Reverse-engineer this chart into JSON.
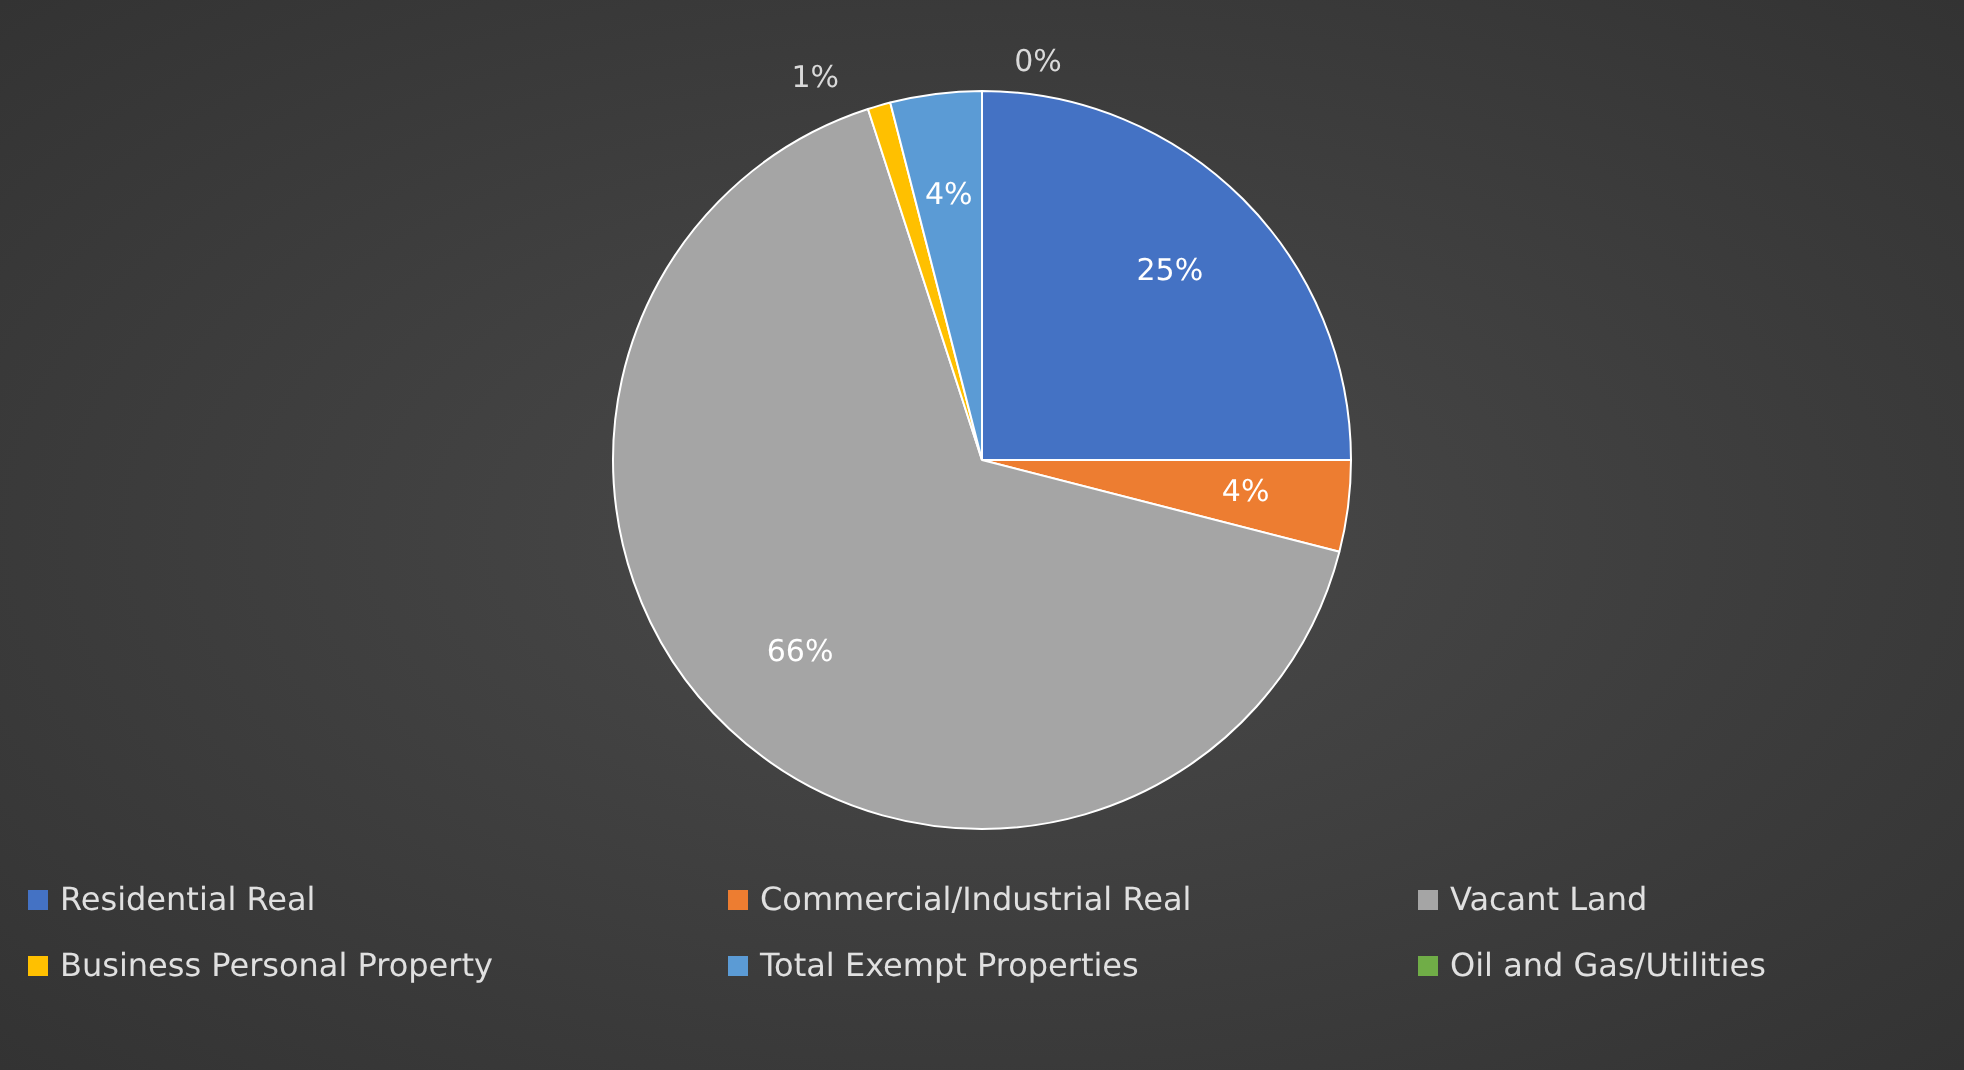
{
  "chart_data": {
    "type": "pie",
    "categories": [
      "Residential Real",
      "Commercial/Industrial Real",
      "Vacant Land",
      "Business Personal Property",
      "Total Exempt Properties",
      "Oil and Gas/Utilities"
    ],
    "values": [
      25,
      4,
      66,
      1,
      4,
      0
    ],
    "colors": [
      "#4472c4",
      "#ed7d31",
      "#a5a5a5",
      "#ffc000",
      "#5b9bd5",
      "#70ad47"
    ],
    "value_labels": [
      "25%",
      "4%",
      "66%",
      "1%",
      "4%",
      "0%"
    ],
    "legend": "bottom"
  }
}
